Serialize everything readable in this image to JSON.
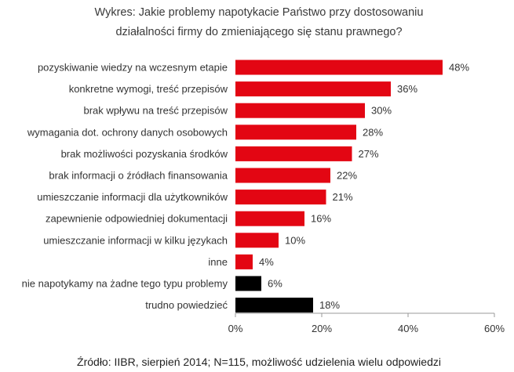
{
  "chart_data": {
    "type": "bar",
    "orientation": "horizontal",
    "title_lines": [
      "Wykres: Jakie problemy napotykacie Państwo przy dostosowaniu",
      "działalności firmy do zmieniającego się stanu prawnego?"
    ],
    "categories": [
      "pozyskiwanie wiedzy na wczesnym etapie",
      "konkretne wymogi, treść przepisów",
      "brak wpływu na treść przepisów",
      "wymagania dot. ochrony danych osobowych",
      "brak możliwości pozyskania środków",
      "brak informacji o źródłach finansowania",
      "umieszczanie informacji dla użytkowników",
      "zapewnienie odpowiedniej dokumentacji",
      "umieszczanie informacji w kilku językach",
      "inne",
      "nie napotykamy na żadne tego typu problemy",
      "trudno powiedzieć"
    ],
    "values": [
      48,
      36,
      30,
      28,
      27,
      22,
      21,
      16,
      10,
      4,
      6,
      18
    ],
    "value_labels": [
      "48%",
      "36%",
      "30%",
      "28%",
      "27%",
      "22%",
      "21%",
      "16%",
      "10%",
      "4%",
      "6%",
      "18%"
    ],
    "bar_colors": [
      "#e30613",
      "#e30613",
      "#e30613",
      "#e30613",
      "#e30613",
      "#e30613",
      "#e30613",
      "#e30613",
      "#e30613",
      "#e30613",
      "#000000",
      "#000000"
    ],
    "xlim": [
      0,
      60
    ],
    "xticks": [
      0,
      20,
      40,
      60
    ],
    "xtick_labels": [
      "0%",
      "20%",
      "40%",
      "60%"
    ],
    "xlabel": "",
    "ylabel": "",
    "grid": false,
    "legend": "none"
  },
  "source": "Źródło: IIBR, sierpień 2014; N=115, możliwość udzielenia wielu odpowiedzi"
}
